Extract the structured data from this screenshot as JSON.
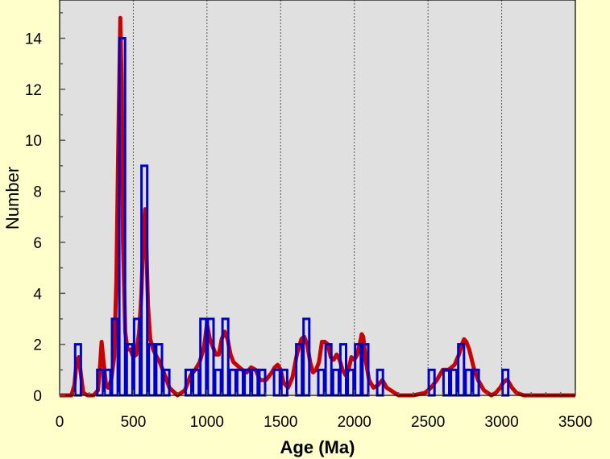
{
  "chart_data": {
    "type": "bar",
    "xlabel": "Age (Ma)",
    "ylabel": "Number",
    "xlim": [
      0,
      3500
    ],
    "ylim": [
      0,
      15.5
    ],
    "x_ticks": [
      0,
      500,
      1000,
      1500,
      2000,
      2500,
      3000,
      3500
    ],
    "y_ticks": [
      0,
      2,
      4,
      6,
      8,
      10,
      12,
      14
    ],
    "x_gridlines": [
      500,
      1000,
      1500,
      2000,
      2500,
      3000
    ],
    "bin_width": 50,
    "histogram": {
      "bin_starts": [
        100,
        250,
        300,
        350,
        400,
        450,
        500,
        550,
        600,
        650,
        700,
        850,
        900,
        950,
        1000,
        1050,
        1100,
        1150,
        1200,
        1250,
        1300,
        1350,
        1450,
        1500,
        1600,
        1650,
        1750,
        1800,
        1850,
        1900,
        1950,
        2000,
        2050,
        2150,
        2500,
        2600,
        2650,
        2700,
        2750,
        2800,
        3000
      ],
      "counts": [
        2,
        1,
        1,
        3,
        14,
        2,
        3,
        9,
        2,
        2,
        1,
        1,
        1,
        3,
        3,
        1,
        3,
        1,
        1,
        1,
        1,
        1,
        1,
        1,
        2,
        3,
        1,
        2,
        1,
        2,
        1,
        2,
        2,
        1,
        1,
        1,
        1,
        2,
        1,
        1,
        1
      ],
      "color": "#0000cc"
    },
    "density_curve": {
      "color": "#cc0000",
      "x": [
        0,
        80,
        100,
        115,
        130,
        145,
        160,
        190,
        230,
        260,
        270,
        285,
        300,
        315,
        330,
        350,
        370,
        385,
        400,
        412,
        420,
        430,
        445,
        460,
        480,
        500,
        520,
        540,
        555,
        570,
        580,
        590,
        600,
        615,
        635,
        660,
        680,
        700,
        720,
        745,
        800,
        850,
        890,
        920,
        950,
        980,
        1000,
        1020,
        1040,
        1060,
        1080,
        1100,
        1120,
        1140,
        1160,
        1180,
        1200,
        1240,
        1270,
        1300,
        1330,
        1360,
        1400,
        1440,
        1460,
        1480,
        1500,
        1520,
        1550,
        1580,
        1610,
        1640,
        1660,
        1680,
        1700,
        1720,
        1740,
        1760,
        1780,
        1800,
        1820,
        1840,
        1860,
        1880,
        1900,
        1920,
        1940,
        1960,
        1980,
        2000,
        2020,
        2040,
        2050,
        2060,
        2080,
        2100,
        2130,
        2160,
        2190,
        2220,
        2300,
        2400,
        2480,
        2520,
        2560,
        2600,
        2640,
        2680,
        2710,
        2730,
        2745,
        2760,
        2780,
        2810,
        2840,
        2880,
        2930,
        2960,
        2990,
        3010,
        3030,
        3040,
        3050,
        3070,
        3100,
        3150,
        3500
      ],
      "y": [
        0,
        0,
        0.4,
        1.3,
        1.5,
        0.8,
        0.1,
        0,
        0,
        0.2,
        0.8,
        2.1,
        1.2,
        0.4,
        0.3,
        0.6,
        1.5,
        4.5,
        10.5,
        14.8,
        12.5,
        6,
        2.5,
        1.8,
        1.8,
        1.5,
        1.6,
        2.5,
        4,
        6.5,
        7.3,
        5.5,
        3.5,
        2.2,
        1.8,
        1.5,
        1.3,
        1,
        0.7,
        0.3,
        0,
        0.2,
        0.8,
        1,
        1.3,
        1.9,
        2.8,
        2.2,
        1.9,
        1.6,
        1.6,
        2.2,
        2.5,
        2.2,
        1.6,
        1.3,
        1.2,
        1,
        0.9,
        1.1,
        1,
        0.6,
        0.6,
        0.9,
        1.1,
        1.2,
        1,
        0.5,
        0.3,
        0.7,
        1.6,
        2.2,
        2.3,
        2,
        1.3,
        0.9,
        1,
        1.3,
        2.1,
        2.1,
        2,
        1.5,
        1.4,
        1.6,
        1.4,
        1,
        0.8,
        1,
        1.5,
        1.4,
        1.6,
        2.1,
        2.4,
        2.3,
        1.3,
        0.6,
        0.3,
        0.4,
        0.6,
        0.3,
        0,
        0,
        0.1,
        0.3,
        0.6,
        1,
        1,
        1.2,
        1.6,
        2,
        2.2,
        2.1,
        1.8,
        1.1,
        0.6,
        0.2,
        0,
        0.1,
        0.3,
        0.5,
        0.6,
        0.6,
        0.5,
        0.3,
        0.1,
        0,
        0
      ]
    }
  }
}
